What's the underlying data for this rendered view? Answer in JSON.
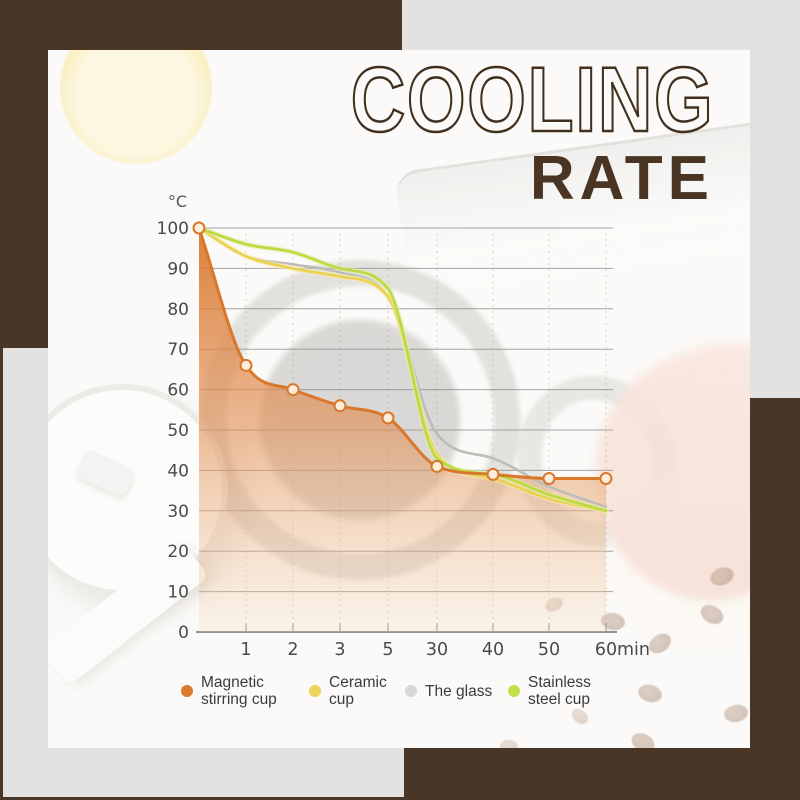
{
  "title": {
    "line1": "COOLING",
    "line2": "RATE"
  },
  "colors": {
    "frame_brown": "#4A3627",
    "background_gray": "#E4E2E0",
    "card_white": "#FBFAF8",
    "title_brown": "#42301F",
    "axis_text": "#4A4A4A",
    "gridline": "#8E8E8E"
  },
  "chart_data": {
    "type": "line",
    "title": "COOLING RATE",
    "ylabel": "°C",
    "xlabel": "",
    "x_unit_suffix": "min",
    "x_tick_labels": [
      "1",
      "2",
      "3",
      "5",
      "30",
      "40",
      "50",
      "60"
    ],
    "x_includes_origin": true,
    "yticks": [
      0,
      10,
      20,
      30,
      40,
      50,
      60,
      70,
      80,
      90,
      100
    ],
    "ylim": [
      0,
      100
    ],
    "grid": "horizontal",
    "legend_position": "bottom",
    "series": [
      {
        "name": "Magnetic stirring cup",
        "color": "#D9772B",
        "marker": true,
        "area": true,
        "marker_fill": "#FBEEDB",
        "values": [
          100,
          66,
          60,
          56,
          53,
          41,
          39,
          38,
          38
        ]
      },
      {
        "name": "Ceramic cup",
        "color": "#EAD14F",
        "glow": "#F6ECA8",
        "values": [
          100,
          93,
          90,
          88,
          83,
          44,
          38,
          33,
          30
        ]
      },
      {
        "name": "The glass",
        "color": "#BDBCB9",
        "values": [
          100,
          93,
          91,
          89,
          83,
          49,
          43,
          36,
          31
        ]
      },
      {
        "name": "Stainless steel cup",
        "color": "#BCD93F",
        "glow": "#DDEDA0",
        "values": [
          100,
          96,
          94,
          90,
          85,
          43,
          39,
          34,
          30
        ]
      }
    ],
    "area_gradient": [
      "rgba(218,121,46,0.95)",
      "rgba(226,145,87,0.62)",
      "rgba(244,210,172,0.22)"
    ]
  },
  "legend": {
    "items": [
      {
        "line1": "Magnetic",
        "line2": "stirring cup",
        "color": "#DA7A2F"
      },
      {
        "line1": "Ceramic",
        "line2": "cup",
        "color": "#EFD35C"
      },
      {
        "line1": "The glass",
        "line2": "",
        "color": "#D9D8D6"
      },
      {
        "line1": "Stainless",
        "line2": "steel cup",
        "color": "#C3E049"
      }
    ]
  }
}
